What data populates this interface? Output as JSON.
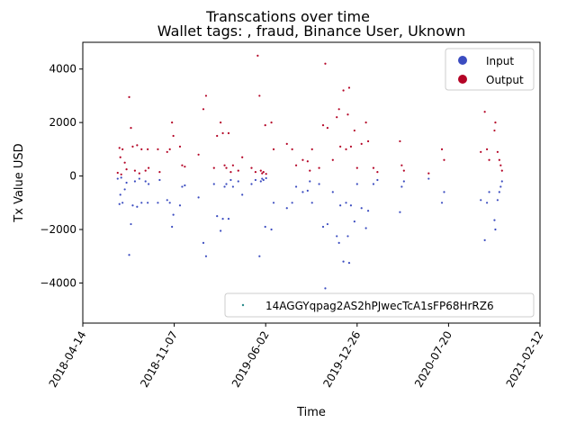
{
  "chart_data": {
    "type": "scatter",
    "suptitle": "Transcations over time",
    "title": "Wallet tags: , fraud, Binance User, Uknown",
    "xlabel": "Time",
    "ylabel": "Tx Value USD",
    "x_ticks": [
      "2018-04-14",
      "2018-11-07",
      "2019-06-02",
      "2019-12-26",
      "2020-07-20",
      "2021-02-12"
    ],
    "y_ticks": [
      -4000,
      -2000,
      0,
      2000,
      4000
    ],
    "xlim": [
      "2018-04-14",
      "2021-02-12"
    ],
    "ylim": [
      -5500,
      5000
    ],
    "grid": false,
    "legend_top": {
      "placement": "upper right",
      "entries": [
        {
          "label": "Input",
          "color": "#3b4cc0"
        },
        {
          "label": "Output",
          "color": "#b40426"
        }
      ]
    },
    "legend_bottom": {
      "placement": "lower right",
      "entries": [
        {
          "label": "14AGGYqpag2AS2hPJwecTcA1sFP68HrRZ6",
          "color": "#2a8a8a"
        }
      ]
    },
    "series": [
      {
        "name": "Output",
        "color": "#b40426",
        "points": [
          [
            "2018-07-02",
            120
          ],
          [
            "2018-07-06",
            1050
          ],
          [
            "2018-07-08",
            700
          ],
          [
            "2018-07-10",
            60
          ],
          [
            "2018-07-13",
            1000
          ],
          [
            "2018-07-18",
            500
          ],
          [
            "2018-07-22",
            250
          ],
          [
            "2018-07-28",
            2950
          ],
          [
            "2018-08-01",
            1800
          ],
          [
            "2018-08-05",
            1100
          ],
          [
            "2018-08-10",
            200
          ],
          [
            "2018-08-15",
            1150
          ],
          [
            "2018-08-20",
            100
          ],
          [
            "2018-08-25",
            1000
          ],
          [
            "2018-09-03",
            200
          ],
          [
            "2018-09-08",
            1000
          ],
          [
            "2018-09-10",
            300
          ],
          [
            "2018-10-01",
            1000
          ],
          [
            "2018-10-05",
            150
          ],
          [
            "2018-10-22",
            900
          ],
          [
            "2018-10-28",
            1000
          ],
          [
            "2018-11-02",
            2000
          ],
          [
            "2018-11-05",
            1500
          ],
          [
            "2018-11-20",
            1100
          ],
          [
            "2018-11-25",
            400
          ],
          [
            "2018-12-01",
            350
          ],
          [
            "2019-01-01",
            800
          ],
          [
            "2019-01-12",
            2500
          ],
          [
            "2019-01-18",
            3000
          ],
          [
            "2019-02-05",
            300
          ],
          [
            "2019-02-12",
            1500
          ],
          [
            "2019-02-20",
            2000
          ],
          [
            "2019-02-25",
            1600
          ],
          [
            "2019-03-01",
            400
          ],
          [
            "2019-03-05",
            300
          ],
          [
            "2019-03-10",
            1600
          ],
          [
            "2019-03-15",
            150
          ],
          [
            "2019-03-20",
            400
          ],
          [
            "2019-04-01",
            200
          ],
          [
            "2019-04-10",
            700
          ],
          [
            "2019-05-01",
            300
          ],
          [
            "2019-05-10",
            150
          ],
          [
            "2019-05-15",
            4500
          ],
          [
            "2019-05-19",
            3000
          ],
          [
            "2019-05-22",
            200
          ],
          [
            "2019-05-25",
            100
          ],
          [
            "2019-05-28",
            150
          ],
          [
            "2019-06-01",
            1900
          ],
          [
            "2019-06-03",
            80
          ],
          [
            "2019-06-15",
            2000
          ],
          [
            "2019-06-20",
            1000
          ],
          [
            "2019-07-20",
            1200
          ],
          [
            "2019-08-01",
            1000
          ],
          [
            "2019-08-10",
            400
          ],
          [
            "2019-08-25",
            600
          ],
          [
            "2019-09-05",
            550
          ],
          [
            "2019-09-10",
            200
          ],
          [
            "2019-09-15",
            1000
          ],
          [
            "2019-10-01",
            300
          ],
          [
            "2019-10-10",
            1900
          ],
          [
            "2019-10-15",
            4200
          ],
          [
            "2019-10-20",
            1800
          ],
          [
            "2019-11-01",
            600
          ],
          [
            "2019-11-10",
            2200
          ],
          [
            "2019-11-15",
            2500
          ],
          [
            "2019-11-18",
            1100
          ],
          [
            "2019-11-25",
            3200
          ],
          [
            "2019-12-01",
            1000
          ],
          [
            "2019-12-05",
            2300
          ],
          [
            "2019-12-08",
            3300
          ],
          [
            "2019-12-12",
            1100
          ],
          [
            "2019-12-20",
            1700
          ],
          [
            "2019-12-26",
            300
          ],
          [
            "2020-01-05",
            1200
          ],
          [
            "2020-01-15",
            2000
          ],
          [
            "2020-01-20",
            1300
          ],
          [
            "2020-02-01",
            300
          ],
          [
            "2020-02-10",
            150
          ],
          [
            "2020-04-01",
            1300
          ],
          [
            "2020-04-05",
            400
          ],
          [
            "2020-04-10",
            200
          ],
          [
            "2020-06-05",
            100
          ],
          [
            "2020-07-05",
            1000
          ],
          [
            "2020-07-10",
            600
          ],
          [
            "2020-10-01",
            900
          ],
          [
            "2020-10-10",
            2400
          ],
          [
            "2020-10-15",
            1000
          ],
          [
            "2020-10-20",
            600
          ],
          [
            "2020-11-01",
            1700
          ],
          [
            "2020-11-03",
            2000
          ],
          [
            "2020-11-08",
            900
          ],
          [
            "2020-11-12",
            600
          ],
          [
            "2020-11-15",
            400
          ],
          [
            "2020-11-18",
            200
          ]
        ]
      },
      {
        "name": "Input",
        "color": "#3b4cc0",
        "points": [
          [
            "2018-07-02",
            -100
          ],
          [
            "2018-07-06",
            -1050
          ],
          [
            "2018-07-08",
            -700
          ],
          [
            "2018-07-10",
            -60
          ],
          [
            "2018-07-13",
            -1000
          ],
          [
            "2018-07-18",
            -500
          ],
          [
            "2018-07-22",
            -250
          ],
          [
            "2018-07-28",
            -2950
          ],
          [
            "2018-08-01",
            -1800
          ],
          [
            "2018-08-05",
            -1100
          ],
          [
            "2018-08-10",
            -200
          ],
          [
            "2018-08-15",
            -1150
          ],
          [
            "2018-08-20",
            -100
          ],
          [
            "2018-08-25",
            -1000
          ],
          [
            "2018-09-03",
            -200
          ],
          [
            "2018-09-08",
            -1000
          ],
          [
            "2018-09-10",
            -300
          ],
          [
            "2018-10-01",
            -1000
          ],
          [
            "2018-10-05",
            -150
          ],
          [
            "2018-10-22",
            -900
          ],
          [
            "2018-10-28",
            -1000
          ],
          [
            "2018-11-02",
            -1900
          ],
          [
            "2018-11-05",
            -1450
          ],
          [
            "2018-11-20",
            -1100
          ],
          [
            "2018-11-25",
            -400
          ],
          [
            "2018-12-01",
            -350
          ],
          [
            "2019-01-01",
            -800
          ],
          [
            "2019-01-12",
            -2500
          ],
          [
            "2019-01-18",
            -3000
          ],
          [
            "2019-02-05",
            -300
          ],
          [
            "2019-02-12",
            -1500
          ],
          [
            "2019-02-20",
            -2050
          ],
          [
            "2019-02-25",
            -1600
          ],
          [
            "2019-03-01",
            -400
          ],
          [
            "2019-03-05",
            -300
          ],
          [
            "2019-03-10",
            -1600
          ],
          [
            "2019-03-15",
            -150
          ],
          [
            "2019-03-20",
            -400
          ],
          [
            "2019-04-01",
            -200
          ],
          [
            "2019-04-10",
            -700
          ],
          [
            "2019-05-01",
            -300
          ],
          [
            "2019-05-10",
            -150
          ],
          [
            "2019-05-19",
            -3000
          ],
          [
            "2019-05-22",
            -200
          ],
          [
            "2019-05-25",
            -100
          ],
          [
            "2019-05-28",
            -150
          ],
          [
            "2019-06-01",
            -1900
          ],
          [
            "2019-06-03",
            -80
          ],
          [
            "2019-06-15",
            -2000
          ],
          [
            "2019-06-20",
            -1000
          ],
          [
            "2019-07-20",
            -1200
          ],
          [
            "2019-08-01",
            -1000
          ],
          [
            "2019-08-10",
            -400
          ],
          [
            "2019-08-25",
            -600
          ],
          [
            "2019-09-05",
            -550
          ],
          [
            "2019-09-10",
            -200
          ],
          [
            "2019-09-15",
            -1000
          ],
          [
            "2019-10-01",
            -300
          ],
          [
            "2019-10-10",
            -1900
          ],
          [
            "2019-10-15",
            -4200
          ],
          [
            "2019-10-20",
            -1800
          ],
          [
            "2019-11-01",
            -600
          ],
          [
            "2019-11-10",
            -2250
          ],
          [
            "2019-11-15",
            -2500
          ],
          [
            "2019-11-18",
            -1100
          ],
          [
            "2019-11-25",
            -3200
          ],
          [
            "2019-12-01",
            -1000
          ],
          [
            "2019-12-05",
            -2250
          ],
          [
            "2019-12-08",
            -3250
          ],
          [
            "2019-12-12",
            -1100
          ],
          [
            "2019-12-20",
            -1700
          ],
          [
            "2019-12-26",
            -300
          ],
          [
            "2020-01-05",
            -1200
          ],
          [
            "2020-01-15",
            -1950
          ],
          [
            "2020-01-20",
            -1300
          ],
          [
            "2020-02-01",
            -300
          ],
          [
            "2020-02-10",
            -150
          ],
          [
            "2020-04-01",
            -1350
          ],
          [
            "2020-04-05",
            -400
          ],
          [
            "2020-04-10",
            -200
          ],
          [
            "2020-06-05",
            -100
          ],
          [
            "2020-07-05",
            -1000
          ],
          [
            "2020-07-10",
            -600
          ],
          [
            "2020-10-01",
            -900
          ],
          [
            "2020-10-10",
            -2400
          ],
          [
            "2020-10-15",
            -1000
          ],
          [
            "2020-10-20",
            -600
          ],
          [
            "2020-11-01",
            -1650
          ],
          [
            "2020-11-03",
            -2000
          ],
          [
            "2020-11-08",
            -900
          ],
          [
            "2020-11-12",
            -600
          ],
          [
            "2020-11-15",
            -400
          ],
          [
            "2020-11-18",
            -200
          ]
        ]
      }
    ]
  }
}
